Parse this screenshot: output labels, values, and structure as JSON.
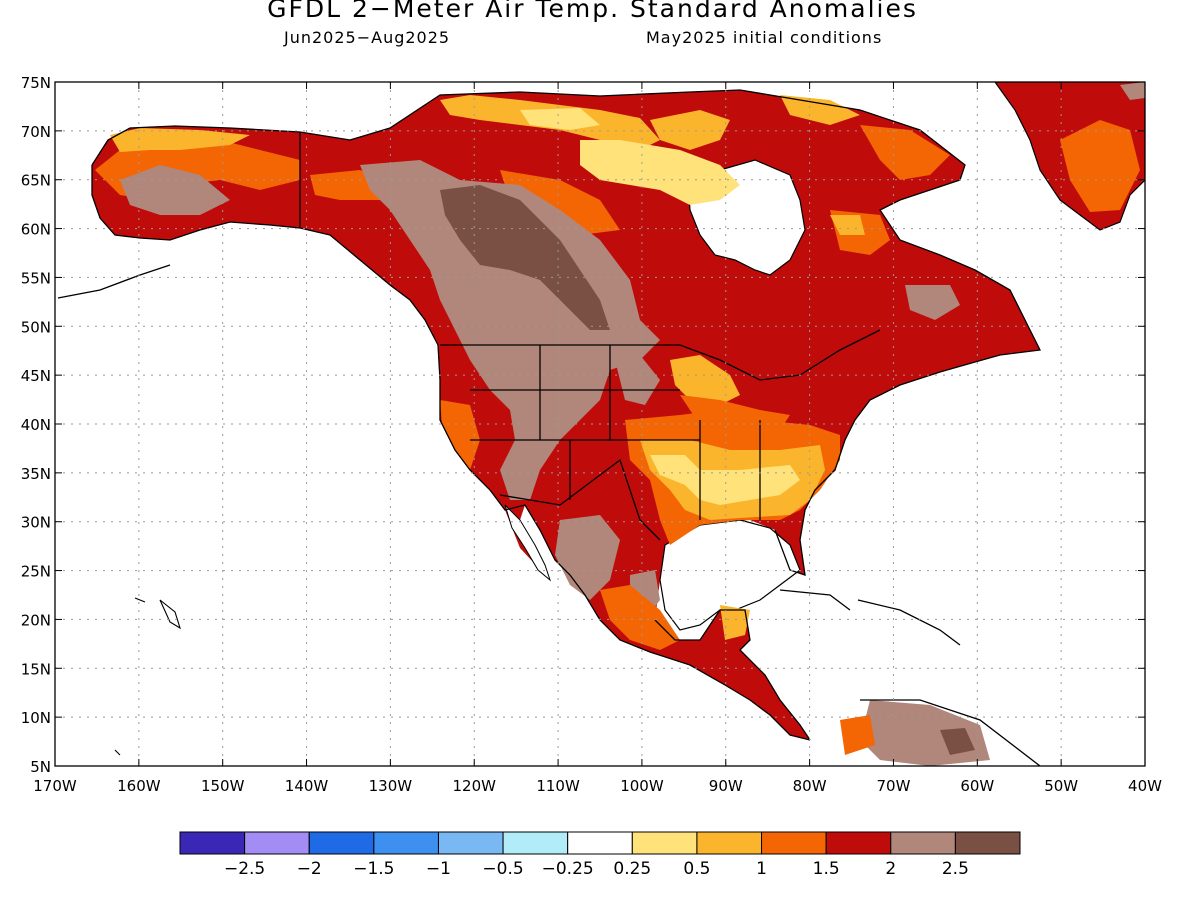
{
  "title": "GFDL 2−Meter Air Temp. Standard Anomalies",
  "subtitle_left": "Jun2025−Aug2025",
  "subtitle_right": "May2025 initial conditions",
  "lat_labels": [
    "75N",
    "70N",
    "65N",
    "60N",
    "55N",
    "50N",
    "45N",
    "40N",
    "35N",
    "30N",
    "25N",
    "20N",
    "15N",
    "10N",
    "5N"
  ],
  "lon_labels": [
    "170W",
    "160W",
    "150W",
    "140W",
    "130W",
    "120W",
    "110W",
    "100W",
    "90W",
    "80W",
    "70W",
    "60W",
    "50W",
    "40W"
  ],
  "colorbar": {
    "colors": [
      "#3a27b5",
      "#a48cf5",
      "#1f6be6",
      "#3d8ff0",
      "#79b8f3",
      "#b2ecf8",
      "#ffffff",
      "#ffe27a",
      "#fbb52c",
      "#f46604",
      "#c00b0b",
      "#b1877c",
      "#7a5044"
    ],
    "labels": [
      "−2.5",
      "−2",
      "−1.5",
      "−1",
      "−0.5",
      "−0.25",
      "0.25",
      "0.5",
      "1",
      "1.5",
      "2",
      "2.5"
    ]
  },
  "colors": {
    "ocean": "#ffffff",
    "coast": "#000000",
    "grid": "#9a9a9a",
    "anom_0_25": "#ffe27a",
    "anom_0_5": "#fbb52c",
    "anom_1": "#f46604",
    "anom_1_5": "#c00b0b",
    "anom_2": "#b1877c",
    "anom_2_5": "#7a5044"
  },
  "map_extent": {
    "lon": [
      -170,
      -40
    ],
    "lat": [
      5,
      75
    ]
  }
}
